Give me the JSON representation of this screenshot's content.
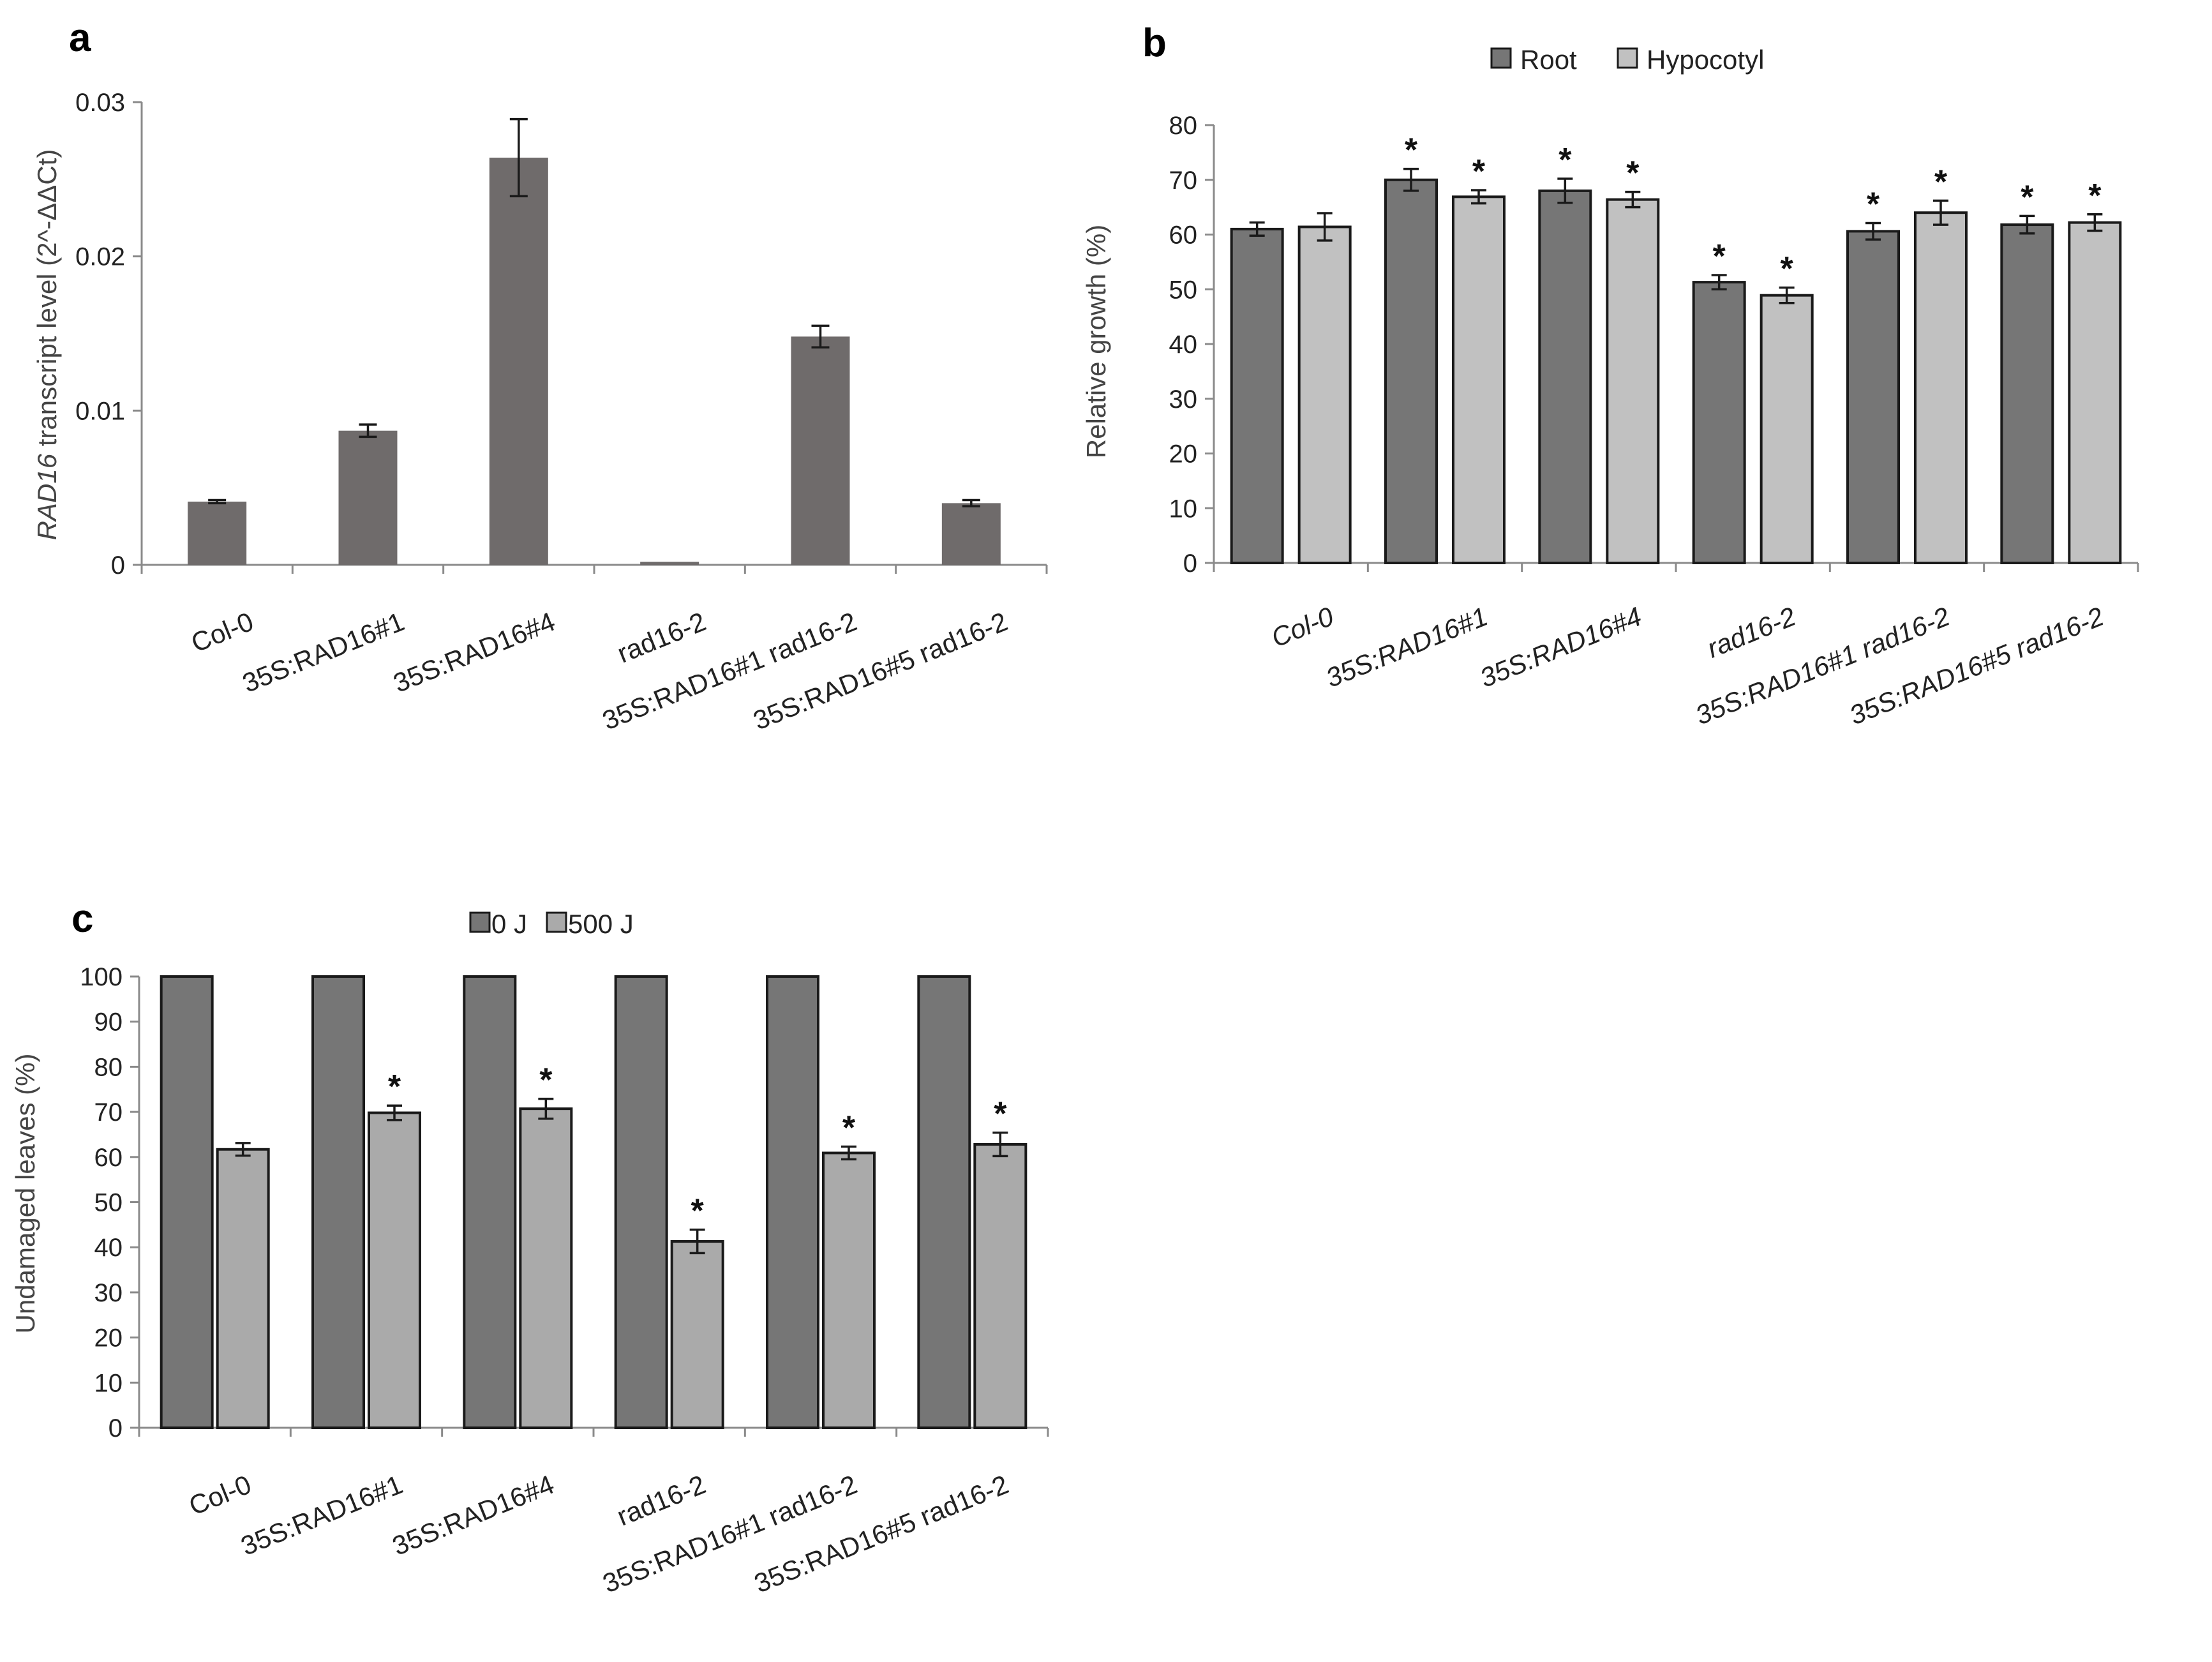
{
  "colors": {
    "panel_a_bar": "#6f6b6b",
    "dark_series": "#767676",
    "light_series_b": "#c1c1c1",
    "light_series_c": "#aaaaaa",
    "bar_outline": "#1a1a1a"
  },
  "chart_data": [
    {
      "panel": "a",
      "type": "bar",
      "title": "",
      "xlabel": "",
      "ylabel_italic": "RAD16",
      "ylabel_rest": " transcript level (2^-ΔΔCt)",
      "categories": [
        "Col-0",
        "35S:RAD16#1",
        "35S:RAD16#4",
        "rad16-2",
        "35S:RAD16#1 rad16-2",
        "35S:RAD16#5 rad16-2"
      ],
      "values": [
        0.0041,
        0.0087,
        0.0264,
        0.0002,
        0.0148,
        0.004
      ],
      "errors": [
        0.0001,
        0.0004,
        0.0025,
        0.0,
        0.0007,
        0.0002
      ],
      "ylim": [
        0,
        0.03
      ],
      "yticks": [
        "0",
        "0.01",
        "0.02",
        "0.03"
      ],
      "ytick_values": [
        0,
        0.01,
        0.02,
        0.03
      ]
    },
    {
      "panel": "b",
      "type": "bar",
      "title": "",
      "xlabel": "",
      "ylabel": "Relative  growth  (%)",
      "categories": [
        "Col-0",
        "35S:RAD16#1",
        "35S:RAD16#4",
        "rad16-2",
        "35S:RAD16#1 rad16-2",
        "35S:RAD16#5 rad16-2"
      ],
      "series": [
        {
          "name": "Root",
          "values": [
            61,
            70,
            68,
            51.3,
            60.6,
            61.8
          ],
          "errors": [
            1.2,
            2.0,
            2.2,
            1.3,
            1.5,
            1.6
          ],
          "significant": [
            false,
            true,
            true,
            true,
            true,
            true
          ]
        },
        {
          "name": "Hypocotyl",
          "values": [
            61.4,
            66.9,
            66.4,
            48.9,
            64,
            62.2
          ],
          "errors": [
            2.5,
            1.2,
            1.4,
            1.4,
            2.2,
            1.5
          ],
          "significant": [
            false,
            true,
            true,
            true,
            true,
            true
          ]
        }
      ],
      "ylim": [
        0,
        80
      ],
      "yticks": [
        "0",
        "10",
        "20",
        "30",
        "40",
        "50",
        "60",
        "70",
        "80"
      ],
      "ytick_values": [
        0,
        10,
        20,
        30,
        40,
        50,
        60,
        70,
        80
      ],
      "legend": "top-center",
      "star": "*"
    },
    {
      "panel": "c",
      "type": "bar",
      "title": "",
      "xlabel": "",
      "ylabel": "Undamaged leaves (%)",
      "categories": [
        "Col-0",
        "35S:RAD16#1",
        "35S:RAD16#4",
        "rad16-2",
        "35S:RAD16#1 rad16-2",
        "35S:RAD16#5 rad16-2"
      ],
      "series": [
        {
          "name": "0 J",
          "values": [
            100,
            100,
            100,
            100,
            100,
            100
          ],
          "errors": [
            0,
            0,
            0,
            0,
            0,
            0
          ],
          "significant": [
            false,
            false,
            false,
            false,
            false,
            false
          ]
        },
        {
          "name": "500 J",
          "values": [
            61.7,
            69.8,
            70.7,
            41.3,
            60.9,
            62.8
          ],
          "errors": [
            1.4,
            1.6,
            2.2,
            2.6,
            1.4,
            2.6
          ],
          "significant": [
            false,
            true,
            true,
            true,
            true,
            true
          ]
        }
      ],
      "ylim": [
        0,
        100
      ],
      "yticks": [
        "0",
        "10",
        "20",
        "30",
        "40",
        "50",
        "60",
        "70",
        "80",
        "90",
        "100"
      ],
      "ytick_values": [
        0,
        10,
        20,
        30,
        40,
        50,
        60,
        70,
        80,
        90,
        100
      ],
      "legend": "top-center",
      "star": "*"
    }
  ],
  "panel_labels": {
    "a": "a",
    "b": "b",
    "c": "c"
  }
}
